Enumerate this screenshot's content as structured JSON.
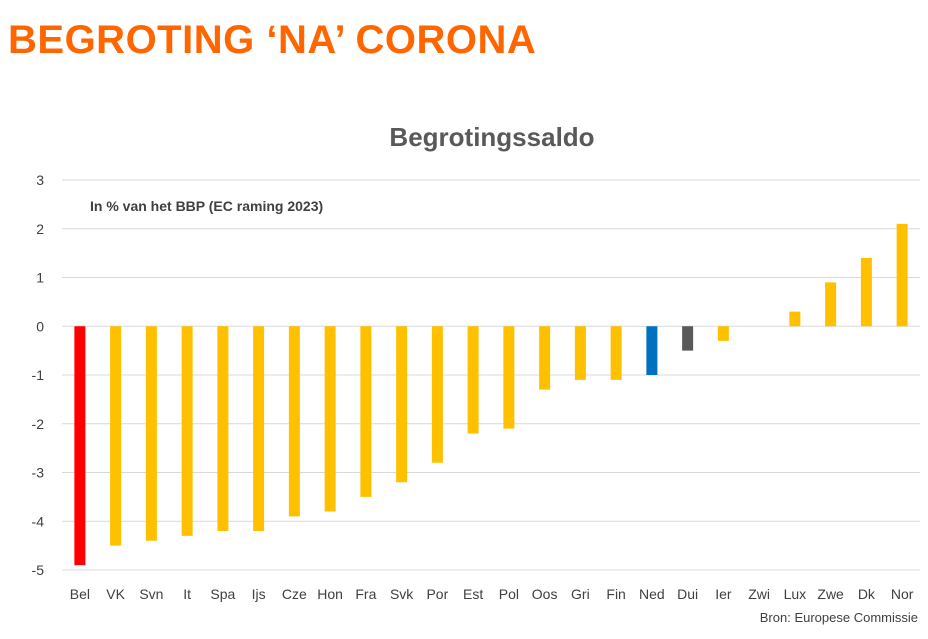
{
  "slide": {
    "title": "BEGROTING ‘NA’ CORONA",
    "title_color": "#FF6600",
    "source": "Bron: Europese Commissie"
  },
  "chart_data": {
    "type": "bar",
    "title": "Begrotingssaldo",
    "subtitle": "In % van het BBP (EC raming 2023)",
    "xlabel": "",
    "ylabel": "",
    "ylim": [
      -5,
      3
    ],
    "yticks": [
      3,
      2,
      1,
      0,
      -1,
      -2,
      -3,
      -4,
      -5
    ],
    "grid": true,
    "categories": [
      "Bel",
      "VK",
      "Svn",
      "It",
      "Spa",
      "Ijs",
      "Cze",
      "Hon",
      "Fra",
      "Svk",
      "Por",
      "Est",
      "Pol",
      "Oos",
      "Gri",
      "Fin",
      "Ned",
      "Dui",
      "Ier",
      "Zwi",
      "Lux",
      "Zwe",
      "Dk",
      "Nor"
    ],
    "values": [
      -4.9,
      -4.5,
      -4.4,
      -4.3,
      -4.2,
      -4.2,
      -3.9,
      -3.8,
      -3.5,
      -3.2,
      -2.8,
      -2.2,
      -2.1,
      -1.3,
      -1.1,
      -1.1,
      -1.0,
      -0.5,
      -0.3,
      0.0,
      0.3,
      0.9,
      1.4,
      2.1
    ],
    "colors": {
      "default": "#FFC000",
      "Bel": "#FF0000",
      "Ned": "#0070C0",
      "Dui": "#595959"
    }
  }
}
